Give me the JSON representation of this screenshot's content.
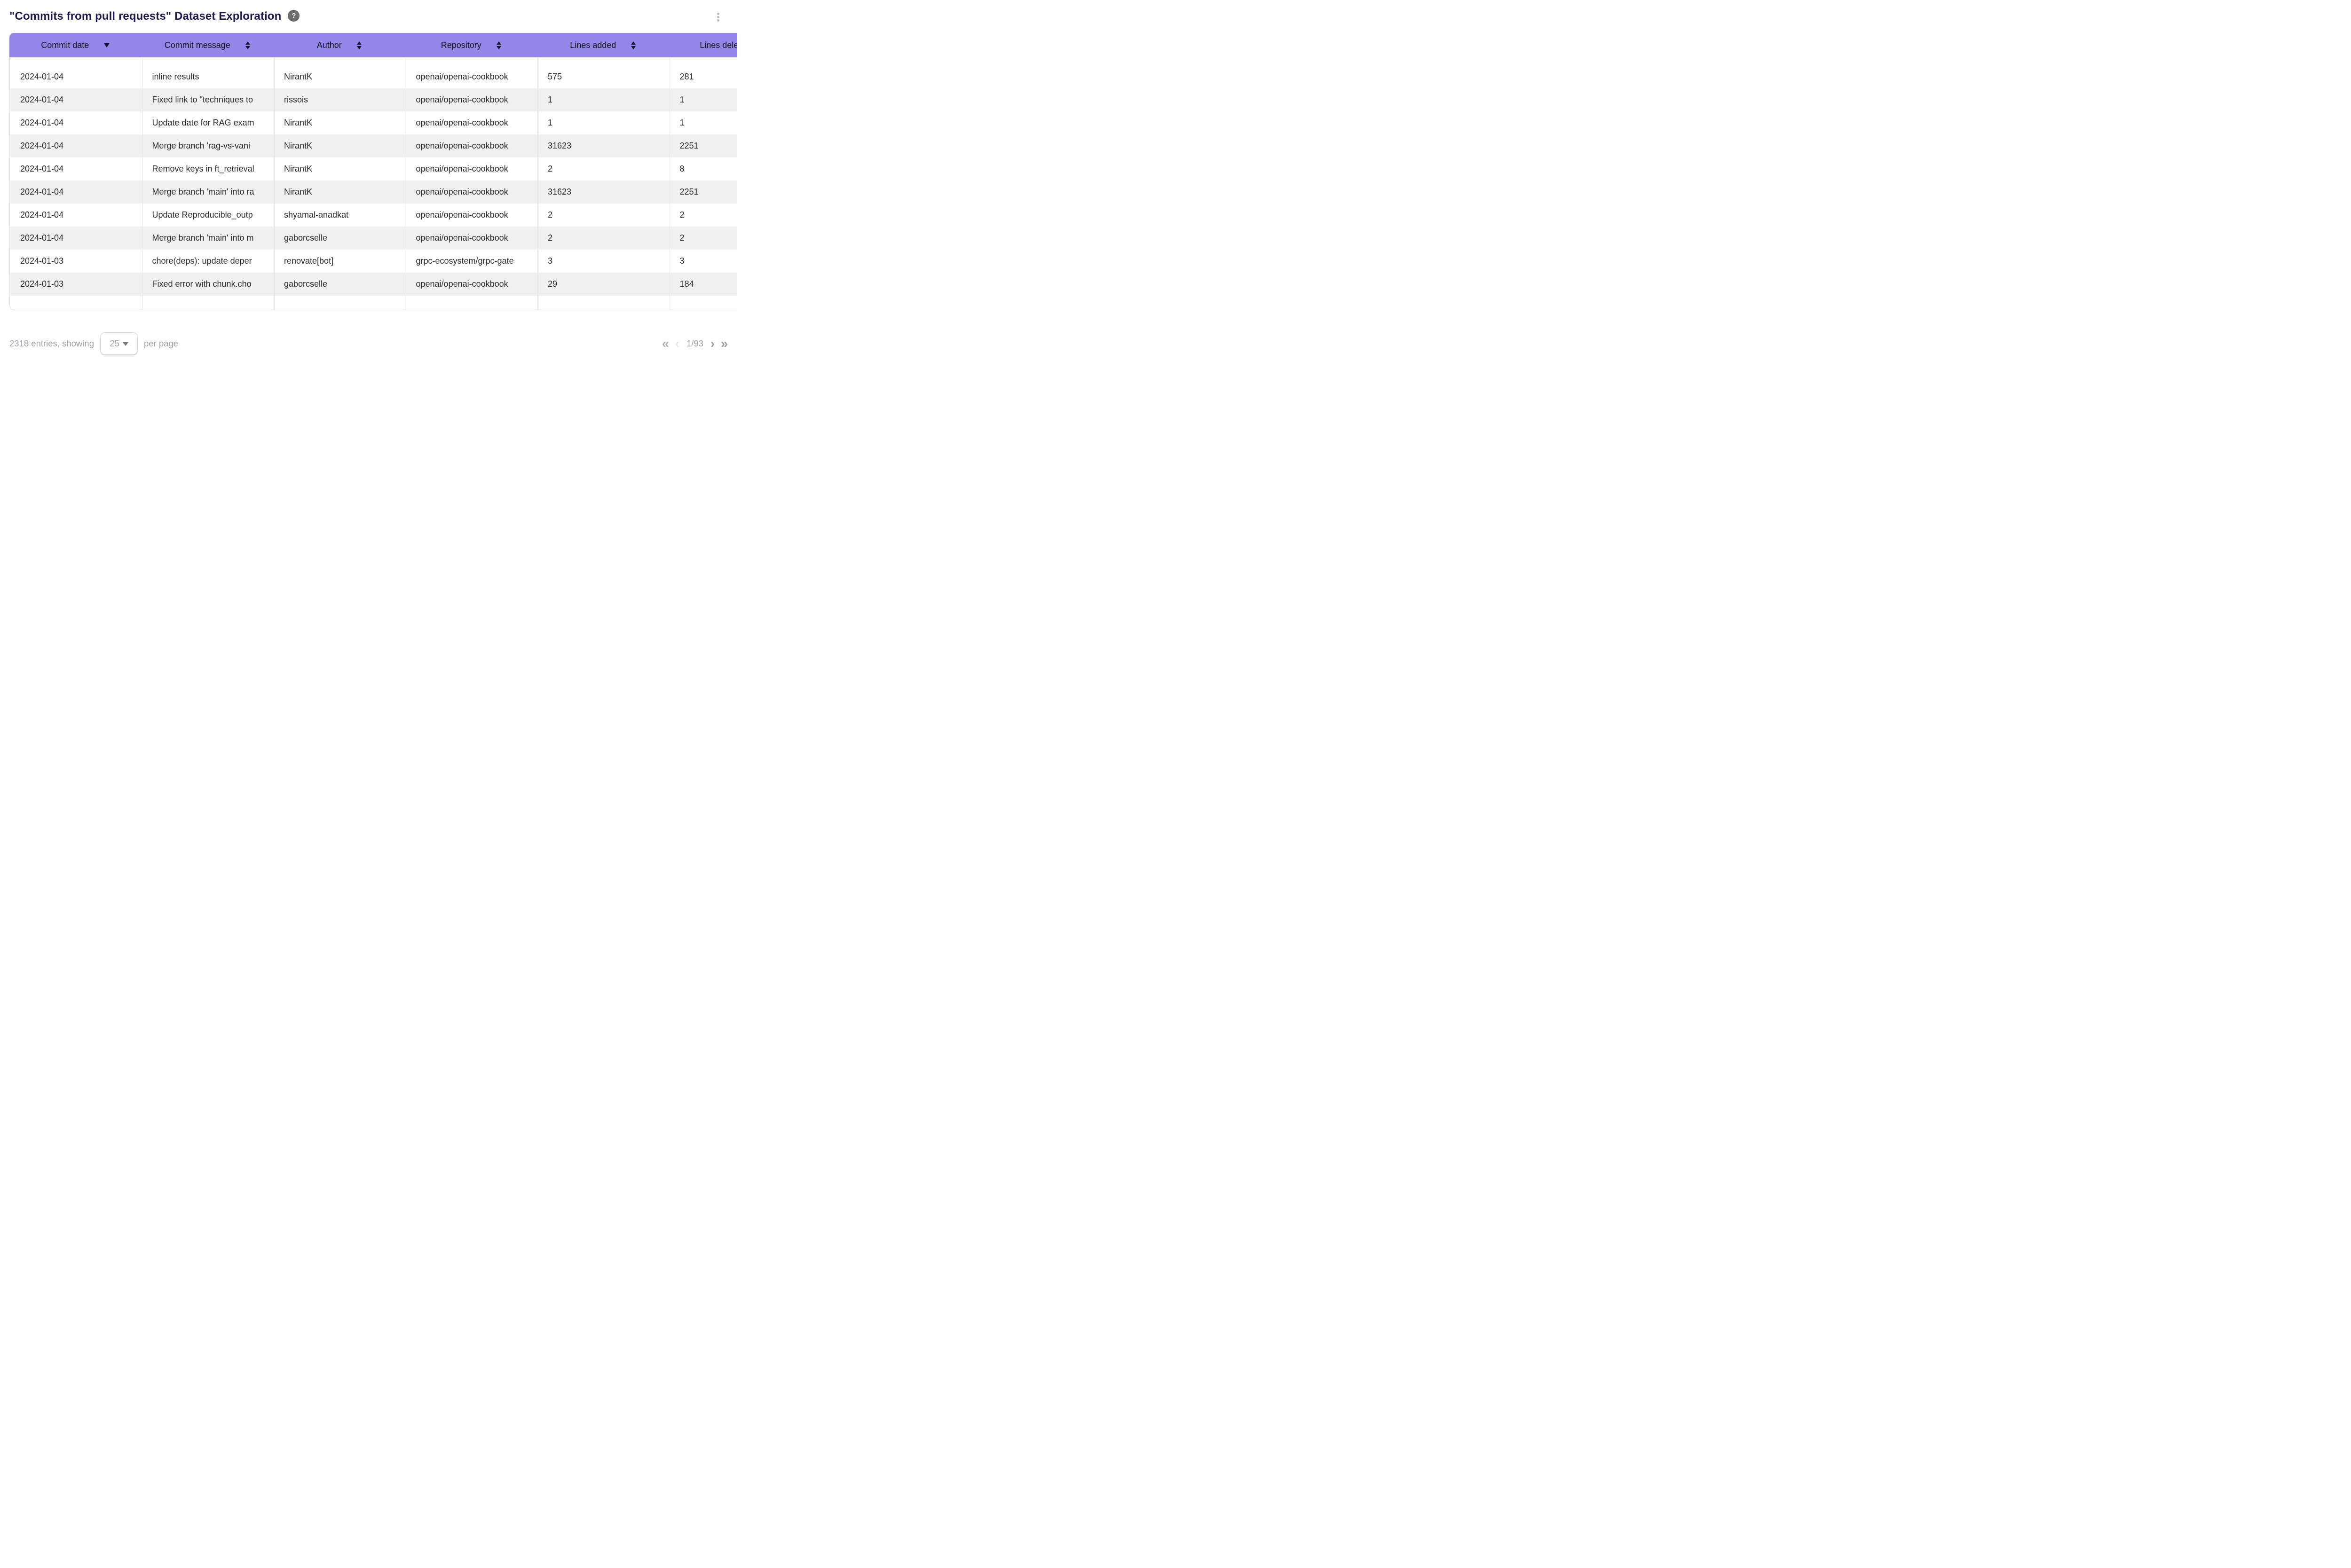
{
  "page": {
    "title": "\"Commits from pull requests\" Dataset Exploration",
    "help_glyph": "?"
  },
  "table": {
    "columns": [
      {
        "key": "date",
        "label": "Commit date",
        "sort": "desc"
      },
      {
        "key": "message",
        "label": "Commit message",
        "sort": "both"
      },
      {
        "key": "author",
        "label": "Author",
        "sort": "both"
      },
      {
        "key": "repo",
        "label": "Repository",
        "sort": "both"
      },
      {
        "key": "added",
        "label": "Lines added",
        "sort": "both"
      },
      {
        "key": "deleted",
        "label": "Lines deleted",
        "sort": "both"
      }
    ],
    "rows": [
      {
        "date": "2024-01-04",
        "message": "inline results",
        "author": "NirantK",
        "repo": "openai/openai-cookbook",
        "added": "575",
        "deleted": "281"
      },
      {
        "date": "2024-01-04",
        "message": "Fixed link to \"techniques to",
        "author": "rissois",
        "repo": "openai/openai-cookbook",
        "added": "1",
        "deleted": "1"
      },
      {
        "date": "2024-01-04",
        "message": "Update date for RAG exam",
        "author": "NirantK",
        "repo": "openai/openai-cookbook",
        "added": "1",
        "deleted": "1"
      },
      {
        "date": "2024-01-04",
        "message": "Merge branch 'rag-vs-vani",
        "author": "NirantK",
        "repo": "openai/openai-cookbook",
        "added": "31623",
        "deleted": "2251"
      },
      {
        "date": "2024-01-04",
        "message": "Remove keys in ft_retrieval",
        "author": "NirantK",
        "repo": "openai/openai-cookbook",
        "added": "2",
        "deleted": "8"
      },
      {
        "date": "2024-01-04",
        "message": "Merge branch 'main' into ra",
        "author": "NirantK",
        "repo": "openai/openai-cookbook",
        "added": "31623",
        "deleted": "2251"
      },
      {
        "date": "2024-01-04",
        "message": "Update Reproducible_outp",
        "author": "shyamal-anadkat",
        "repo": "openai/openai-cookbook",
        "added": "2",
        "deleted": "2"
      },
      {
        "date": "2024-01-04",
        "message": "Merge branch 'main' into m",
        "author": "gaborcselle",
        "repo": "openai/openai-cookbook",
        "added": "2",
        "deleted": "2"
      },
      {
        "date": "2024-01-03",
        "message": "chore(deps): update deper",
        "author": "renovate[bot]",
        "repo": "grpc-ecosystem/grpc-gate",
        "added": "3",
        "deleted": "3"
      },
      {
        "date": "2024-01-03",
        "message": "Fixed error with chunk.cho",
        "author": "gaborcselle",
        "repo": "openai/openai-cookbook",
        "added": "29",
        "deleted": "184"
      }
    ]
  },
  "footer": {
    "entries_text": "2318 entries, showing",
    "page_size": "25",
    "per_page_text": "per page",
    "page_indicator": "1/93",
    "first_label": "«",
    "prev_label": "‹",
    "next_label": "›",
    "last_label": "»"
  },
  "colors": {
    "header_bg": "#9286e8",
    "title_text": "#1a1a52",
    "row_stripe": "#f0f0f0",
    "cell_text": "#2a2a2a",
    "muted_text": "#9aa3ad",
    "help_badge_bg": "#6b6b6b"
  }
}
